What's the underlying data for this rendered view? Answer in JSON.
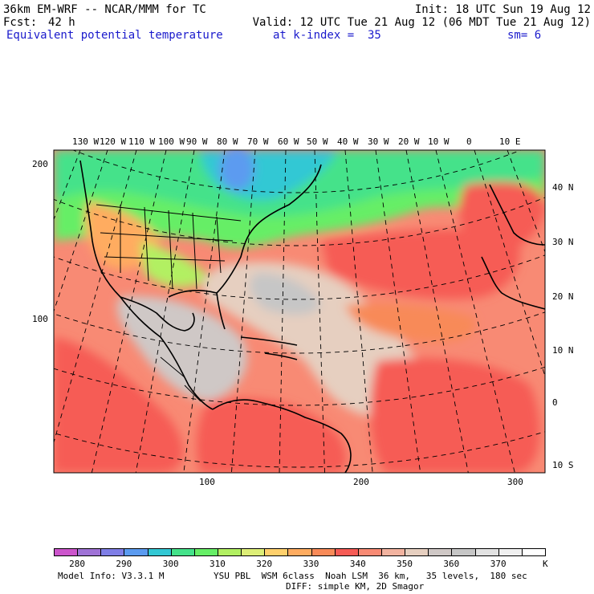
{
  "header": {
    "title_left": "36km EM-WRF -- NCAR/MMM for TC",
    "init": "Init: 18 UTC Sun 19 Aug 12",
    "fcst_label": "Fcst:",
    "fcst_value": "42 h",
    "valid": "Valid: 12 UTC Tue 21 Aug 12 (06 MDT Tue 21 Aug 12)",
    "field_name": "Equivalent potential temperature",
    "k_index": "at k-index =  35",
    "smoothing": "sm= 6"
  },
  "map": {
    "lon_labels": [
      "130 W",
      "120 W",
      "110 W",
      "100 W",
      "90 W",
      "80 W",
      "70 W",
      "60 W",
      "50 W",
      "40 W",
      "30 W",
      "20 W",
      "10 W",
      "0",
      "10 E"
    ],
    "lat_labels": [
      "40 N",
      "30 N",
      "20 N",
      "10 N",
      "0",
      "10 S"
    ],
    "left_axis_ticks": [
      "200",
      "100"
    ],
    "bottom_axis_ticks": [
      "100",
      "200",
      "300"
    ]
  },
  "colorbar": {
    "levels": [
      "280",
      "290",
      "300",
      "310",
      "320",
      "330",
      "340",
      "350",
      "360",
      "370"
    ],
    "unit": "K",
    "colors": [
      "#cc55cc",
      "#9f72d6",
      "#7f7ee6",
      "#5b9bf0",
      "#33c8d4",
      "#44e28a",
      "#66ee66",
      "#b2f062",
      "#ddee77",
      "#ffd06c",
      "#ffac60",
      "#f88a58",
      "#f65b55",
      "#f88a74",
      "#f2b3a0",
      "#e6cfc0",
      "#cfc8c6",
      "#c6c6c6",
      "#e2e2e2",
      "#f0f0f0",
      "#ffffff"
    ]
  },
  "footer": {
    "model_info": "Model Info: V3.3.1 M",
    "physics": "YSU PBL  WSM 6class  Noah LSM  36 km,   35 levels,  180 sec",
    "diffusion": "DIFF: simple KM, 2D Smagor"
  }
}
